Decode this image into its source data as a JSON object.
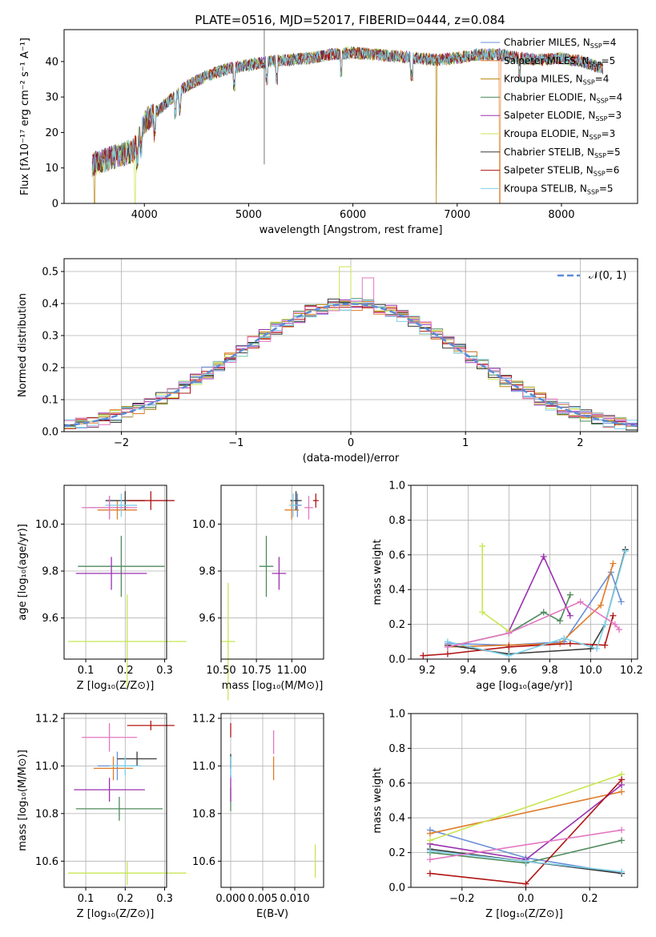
{
  "figure": {
    "title": "PLATE=0516, MJD=52017, FIBERID=0444, z=0.084"
  },
  "models": [
    {
      "key": "cm",
      "label": "Chabrier MILES, N",
      "sub": "SSP",
      "eq": "=4",
      "color": "#6a8fd8"
    },
    {
      "key": "sm",
      "label": "Salpeter MILES, N",
      "sub": "SSP",
      "eq": "=5",
      "color": "#e07b28"
    },
    {
      "key": "km",
      "label": "Kroupa MILES, N",
      "sub": "SSP",
      "eq": "=4",
      "color": "#b8860b"
    },
    {
      "key": "ce",
      "label": "Chabrier ELODIE, N",
      "sub": "SSP",
      "eq": "=4",
      "color": "#4e8a5c"
    },
    {
      "key": "se",
      "label": "Salpeter ELODIE, N",
      "sub": "SSP",
      "eq": "=3",
      "color": "#9b30b0"
    },
    {
      "key": "ke",
      "label": "Kroupa ELODIE, N",
      "sub": "SSP",
      "eq": "=3",
      "color": "#c8e654"
    },
    {
      "key": "cs",
      "label": "Chabrier STELIB, N",
      "sub": "SSP",
      "eq": "=5",
      "color": "#3a3a3a"
    },
    {
      "key": "ss",
      "label": "Salpeter STELIB, N",
      "sub": "SSP",
      "eq": "=6",
      "color": "#b01515"
    },
    {
      "key": "ks",
      "label": "Kroupa STELIB, N",
      "sub": "SSP",
      "eq": "=5",
      "color": "#7fd0e8"
    }
  ],
  "extra_colors": {
    "pink": "#e377c2"
  },
  "chart_data": [
    {
      "id": "spectrum",
      "type": "line",
      "title": "PLATE=0516, MJD=52017, FIBERID=0444, z=0.084",
      "xlabel": "wavelength [Angstrom, rest frame]",
      "ylabel": "Flux [fλ10⁻¹⁷ erg cm⁻² s⁻¹ A⁻¹]",
      "xlim": [
        3230,
        8730
      ],
      "ylim": [
        0,
        49
      ],
      "xticks": [
        4000,
        5000,
        6000,
        7000,
        8000
      ],
      "yticks": [
        0,
        10,
        20,
        30,
        40
      ],
      "continuum": {
        "x": [
          3500,
          3700,
          3900,
          4000,
          4200,
          4400,
          4600,
          4800,
          5000,
          5200,
          5400,
          5600,
          5800,
          6000,
          6200,
          6400,
          6600,
          6800,
          7000,
          7200,
          7400,
          7600,
          7800,
          8000,
          8200,
          8400
        ],
        "y": [
          11,
          13,
          15,
          23,
          28,
          33,
          36,
          38,
          39,
          40,
          40.5,
          41,
          42,
          42.5,
          42,
          41.5,
          41,
          40.5,
          41,
          42,
          42,
          41,
          40.5,
          41,
          40,
          38
        ]
      },
      "spike": {
        "x": 5150,
        "y_top": 49,
        "y_bottom": 11
      },
      "dropouts": [
        {
          "x": 3520,
          "model": "km"
        },
        {
          "x": 3910,
          "model": "ke"
        },
        {
          "x": 6800,
          "model": "km"
        },
        {
          "x": 7410,
          "model": "sm"
        }
      ],
      "legend": "upper right"
    },
    {
      "id": "residuals",
      "type": "step",
      "xlabel": "(data-model)/error",
      "ylabel": "Normed distribution",
      "xlim": [
        -2.5,
        2.5
      ],
      "ylim": [
        0,
        0.54
      ],
      "xticks": [
        -2,
        -1,
        0,
        1,
        2
      ],
      "yticks": [
        0.0,
        0.1,
        0.2,
        0.3,
        0.4,
        0.5
      ],
      "bin_width": 0.1,
      "reference": {
        "label": "𝒩(0, 1)",
        "mean": 0,
        "sigma": 1,
        "color": "#5b8bd8"
      },
      "highlight": {
        "model": "ke",
        "x": -0.05,
        "y": 0.515
      },
      "highlight2": {
        "x": 0.15,
        "y": 0.48
      }
    },
    {
      "id": "age_vs_Z",
      "type": "errorbar",
      "xlabel": "Z [log₁₀(Z/Z⊙)]",
      "ylabel": "age  [log₁₀(age/yr)]",
      "xlim": [
        0.045,
        0.305
      ],
      "ylim": [
        9.425,
        10.165
      ],
      "xticks": [
        0.1,
        0.2,
        0.3
      ],
      "yticks": [
        9.6,
        9.8,
        10.0
      ],
      "points": [
        {
          "model": "cm",
          "x": 0.16,
          "xerr": 0.05,
          "y": 10.07,
          "yerr": 0.05
        },
        {
          "model": "sm",
          "x": 0.18,
          "xerr": 0.05,
          "y": 10.06,
          "yerr": 0.04
        },
        {
          "model": "ce",
          "x": 0.19,
          "xerr": 0.11,
          "y": 9.82,
          "yerr": 0.13
        },
        {
          "model": "se",
          "x": 0.165,
          "xerr": 0.09,
          "y": 9.79,
          "yerr": 0.07
        },
        {
          "model": "ke",
          "x": 0.205,
          "xerr": 0.15,
          "y": 9.5,
          "yerr": 0.2
        },
        {
          "model": "cs",
          "x": 0.2,
          "xerr": 0.05,
          "y": 10.1,
          "yerr": 0.04
        },
        {
          "model": "ss",
          "x": 0.265,
          "xerr": 0.06,
          "y": 10.1,
          "yerr": 0.04
        },
        {
          "model": "ks",
          "x": 0.19,
          "xerr": 0.04,
          "y": 10.08,
          "yerr": 0.05
        },
        {
          "model": "pink",
          "x": 0.16,
          "xerr": 0.07,
          "y": 10.07,
          "yerr": 0.05
        }
      ]
    },
    {
      "id": "age_vs_mass",
      "type": "errorbar",
      "xlabel": "mass [log₁₀(M/M⊙)]",
      "ylabel": "",
      "xlim": [
        10.5,
        11.225
      ],
      "ylim": [
        9.425,
        10.165
      ],
      "xticks": [
        10.5,
        10.75,
        11.0
      ],
      "yticks": [
        9.6,
        9.8,
        10.0
      ],
      "points": [
        {
          "model": "cm",
          "x": 11.04,
          "xerr": 0.03,
          "y": 10.08,
          "yerr": 0.05
        },
        {
          "model": "sm",
          "x": 11.0,
          "xerr": 0.05,
          "y": 10.06,
          "yerr": 0.04
        },
        {
          "model": "ce",
          "x": 10.82,
          "xerr": 0.05,
          "y": 9.82,
          "yerr": 0.13
        },
        {
          "model": "se",
          "x": 10.91,
          "xerr": 0.05,
          "y": 9.79,
          "yerr": 0.07
        },
        {
          "model": "ke",
          "x": 10.55,
          "xerr": 0.05,
          "y": 9.5,
          "yerr": 0.25
        },
        {
          "model": "cs",
          "x": 11.03,
          "xerr": 0.04,
          "y": 10.1,
          "yerr": 0.04
        },
        {
          "model": "ss",
          "x": 11.17,
          "xerr": 0.02,
          "y": 10.1,
          "yerr": 0.03
        },
        {
          "model": "ks",
          "x": 11.01,
          "xerr": 0.03,
          "y": 10.08,
          "yerr": 0.05
        },
        {
          "model": "pink",
          "x": 11.12,
          "xerr": 0.03,
          "y": 10.07,
          "yerr": 0.05
        }
      ]
    },
    {
      "id": "weight_vs_age",
      "type": "line",
      "xlabel": "age  [log₁₀(age/yr)]",
      "ylabel": "mass weight",
      "xlim": [
        9.12,
        10.23
      ],
      "ylim": [
        0,
        1
      ],
      "xticks": [
        9.2,
        9.4,
        9.6,
        9.8,
        10.0,
        10.2
      ],
      "yticks": [
        0.0,
        0.2,
        0.4,
        0.6,
        0.8,
        1.0
      ],
      "series": [
        {
          "model": "cm",
          "x": [
            9.3,
            9.6,
            9.87,
            10.1,
            10.15
          ],
          "y": [
            0.09,
            0.08,
            0.1,
            0.5,
            0.33
          ]
        },
        {
          "model": "sm",
          "x": [
            9.3,
            9.6,
            9.85,
            10.05,
            10.11
          ],
          "y": [
            0.07,
            0.08,
            0.09,
            0.31,
            0.55
          ]
        },
        {
          "model": "ce",
          "x": [
            9.3,
            9.6,
            9.77,
            9.85,
            9.9
          ],
          "y": [
            0.07,
            0.15,
            0.27,
            0.22,
            0.37
          ]
        },
        {
          "model": "se",
          "x": [
            9.6,
            9.77,
            9.9
          ],
          "y": [
            0.16,
            0.59,
            0.25
          ]
        },
        {
          "model": "ke",
          "x": [
            9.47,
            9.47,
            9.6
          ],
          "y": [
            0.65,
            0.27,
            0.16
          ]
        },
        {
          "model": "cs",
          "x": [
            9.3,
            9.6,
            10.0,
            10.07,
            10.17
          ],
          "y": [
            0.08,
            0.03,
            0.06,
            0.2,
            0.63
          ]
        },
        {
          "model": "ss",
          "x": [
            9.18,
            9.3,
            9.6,
            9.9,
            10.07,
            10.11
          ],
          "y": [
            0.02,
            0.03,
            0.07,
            0.09,
            0.08,
            0.25
          ]
        },
        {
          "model": "ks",
          "x": [
            9.3,
            9.6,
            9.87,
            10.03,
            10.07,
            10.17
          ],
          "y": [
            0.1,
            0.02,
            0.12,
            0.06,
            0.2,
            0.62
          ]
        },
        {
          "model": "pink",
          "x": [
            9.3,
            9.6,
            9.95,
            10.12,
            10.14
          ],
          "y": [
            0.07,
            0.15,
            0.33,
            0.2,
            0.17
          ]
        }
      ]
    },
    {
      "id": "mass_vs_Z",
      "type": "errorbar",
      "xlabel": "Z [log₁₀(Z/Z⊙)]",
      "ylabel": "mass [log₁₀(M/M⊙)]",
      "xlim": [
        0.045,
        0.305
      ],
      "ylim": [
        10.49,
        11.22
      ],
      "xticks": [
        0.1,
        0.2,
        0.3
      ],
      "yticks": [
        10.6,
        10.8,
        11.0,
        11.2
      ],
      "points": [
        {
          "model": "cm",
          "x": 0.18,
          "xerr": 0.05,
          "y": 11.0,
          "yerr": 0.06
        },
        {
          "model": "sm",
          "x": 0.17,
          "xerr": 0.05,
          "y": 10.99,
          "yerr": 0.05
        },
        {
          "model": "ce",
          "x": 0.185,
          "xerr": 0.11,
          "y": 10.82,
          "yerr": 0.05
        },
        {
          "model": "se",
          "x": 0.16,
          "xerr": 0.09,
          "y": 10.9,
          "yerr": 0.05
        },
        {
          "model": "ke",
          "x": 0.205,
          "xerr": 0.15,
          "y": 10.55,
          "yerr": 0.05
        },
        {
          "model": "cs",
          "x": 0.23,
          "xerr": 0.05,
          "y": 11.03,
          "yerr": 0.03
        },
        {
          "model": "ss",
          "x": 0.265,
          "xerr": 0.06,
          "y": 11.17,
          "yerr": 0.02
        },
        {
          "model": "ks",
          "x": 0.2,
          "xerr": 0.04,
          "y": 11.0,
          "yerr": 0.04
        },
        {
          "model": "pink",
          "x": 0.16,
          "xerr": 0.07,
          "y": 11.12,
          "yerr": 0.06
        }
      ]
    },
    {
      "id": "mass_vs_EBV",
      "type": "errorbar",
      "xlabel": "E(B-V)",
      "ylabel": "",
      "xlim": [
        -0.0015,
        0.0145
      ],
      "ylim": [
        10.49,
        11.22
      ],
      "xticks": [
        0.0,
        0.005,
        0.01
      ],
      "yticks": [
        10.6,
        10.8,
        11.0,
        11.2
      ],
      "tick_labels": [
        "0.000",
        "0.005",
        "0.010"
      ],
      "points": [
        {
          "model": "cm",
          "x": 0.0,
          "xerr": 0,
          "y": 11.0,
          "yerr": 0.05
        },
        {
          "model": "sm",
          "x": 0.0067,
          "xerr": 0,
          "y": 10.99,
          "yerr": 0.05
        },
        {
          "model": "ce",
          "x": 0.0,
          "xerr": 0,
          "y": 10.86,
          "yerr": 0.05
        },
        {
          "model": "se",
          "x": 0.0,
          "xerr": 0,
          "y": 10.9,
          "yerr": 0.05
        },
        {
          "model": "ke",
          "x": 0.0132,
          "xerr": 0,
          "y": 10.6,
          "yerr": 0.07
        },
        {
          "model": "cs",
          "x": 0.0,
          "xerr": 0,
          "y": 11.02,
          "yerr": 0.03
        },
        {
          "model": "ss",
          "x": 0.0,
          "xerr": 0,
          "y": 11.15,
          "yerr": 0.03
        },
        {
          "model": "ks",
          "x": 0.0,
          "xerr": 0,
          "y": 11.0,
          "yerr": 0.04
        },
        {
          "model": "pink",
          "x": 0.0067,
          "xerr": 0,
          "y": 11.1,
          "yerr": 0.05
        }
      ]
    },
    {
      "id": "weight_vs_Z",
      "type": "line",
      "xlabel": "Z [log₁₀(Z/Z⊙)]",
      "ylabel": "mass weight",
      "xlim": [
        -0.36,
        0.35
      ],
      "ylim": [
        0,
        1
      ],
      "xticks": [
        -0.2,
        0.0,
        0.2
      ],
      "yticks": [
        0.0,
        0.2,
        0.4,
        0.6,
        0.8,
        1.0
      ],
      "series": [
        {
          "model": "cm",
          "x": [
            -0.3,
            0.0,
            0.3
          ],
          "y": [
            0.33,
            0.17,
            0.08
          ]
        },
        {
          "model": "sm",
          "x": [
            -0.3,
            0.3
          ],
          "y": [
            0.31,
            0.55
          ]
        },
        {
          "model": "ce",
          "x": [
            -0.3,
            0.0,
            0.3
          ],
          "y": [
            0.2,
            0.14,
            0.27
          ]
        },
        {
          "model": "se",
          "x": [
            -0.3,
            0.0,
            0.3
          ],
          "y": [
            0.25,
            0.16,
            0.59
          ]
        },
        {
          "model": "ke",
          "x": [
            -0.3,
            0.3
          ],
          "y": [
            0.27,
            0.65
          ]
        },
        {
          "model": "cs",
          "x": [
            -0.3,
            0.0,
            0.3
          ],
          "y": [
            0.22,
            0.15,
            0.08
          ]
        },
        {
          "model": "ss",
          "x": [
            -0.3,
            0.0,
            0.3
          ],
          "y": [
            0.08,
            0.02,
            0.62
          ]
        },
        {
          "model": "ks",
          "x": [
            -0.3,
            0.0,
            0.3
          ],
          "y": [
            0.21,
            0.15,
            0.09
          ]
        },
        {
          "model": "pink",
          "x": [
            -0.3,
            0.3
          ],
          "y": [
            0.16,
            0.33
          ]
        }
      ]
    }
  ]
}
